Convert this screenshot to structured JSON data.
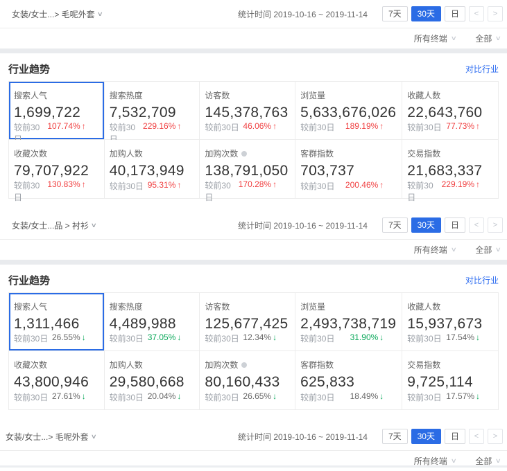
{
  "colors": {
    "accent_blue": "#2b6ce5",
    "link_blue": "#2d6cf0",
    "up_red": "#f04142",
    "down_green": "#0ba85a"
  },
  "modules": [
    {
      "breadcrumb": "女装/女士...> 毛呢外套",
      "stat_time": "统计时间 2019-10-16 ~ 2019-11-14",
      "range_buttons": [
        "7天",
        "30天",
        "日"
      ],
      "active_range": "30天",
      "pager": [
        "<",
        ">"
      ],
      "filters": [
        "所有终端",
        "全部"
      ],
      "panel": {
        "title": "行业趋势",
        "compare_link": "对比行业",
        "compare_label": "较前30日",
        "cards": [
          {
            "label": "搜索人气",
            "value": "1,699,722",
            "change": "107.74%",
            "dir": "up",
            "change_color": "red",
            "selected": true
          },
          {
            "label": "搜索热度",
            "value": "7,532,709",
            "change": "229.16%",
            "dir": "up",
            "change_color": "red"
          },
          {
            "label": "访客数",
            "value": "145,378,763",
            "change": "46.06%",
            "dir": "up",
            "change_color": "red"
          },
          {
            "label": "浏览量",
            "value": "5,633,676,026",
            "change": "189.19%",
            "dir": "up",
            "change_color": "red"
          },
          {
            "label": "收藏人数",
            "value": "22,643,760",
            "change": "77.73%",
            "dir": "up",
            "change_color": "red"
          },
          {
            "label": "收藏次数",
            "value": "79,707,922",
            "change": "130.83%",
            "dir": "up",
            "change_color": "red"
          },
          {
            "label": "加购人数",
            "value": "40,173,949",
            "change": "95.31%",
            "dir": "up",
            "change_color": "red"
          },
          {
            "label": "加购次数",
            "value": "138,791,050",
            "change": "170.28%",
            "dir": "up",
            "change_color": "red",
            "info": true
          },
          {
            "label": "客群指数",
            "value": "703,737",
            "change": "200.46%",
            "dir": "up",
            "change_color": "red"
          },
          {
            "label": "交易指数",
            "value": "21,683,337",
            "change": "229.19%",
            "dir": "up",
            "change_color": "red"
          }
        ]
      }
    },
    {
      "breadcrumb": "女装/女士...品 > 衬衫",
      "stat_time": "统计时间 2019-10-16 ~ 2019-11-14",
      "range_buttons": [
        "7天",
        "30天",
        "日"
      ],
      "active_range": "30天",
      "pager": [
        "<",
        ">"
      ],
      "filters": [
        "所有终端",
        "全部"
      ],
      "panel": {
        "title": "行业趋势",
        "compare_link": "对比行业",
        "compare_label": "较前30日",
        "cards": [
          {
            "label": "搜索人气",
            "value": "1,311,466",
            "change": "26.55%",
            "dir": "down",
            "change_color": "gray",
            "selected": true
          },
          {
            "label": "搜索热度",
            "value": "4,489,988",
            "change": "37.05%",
            "dir": "down",
            "change_color": "green"
          },
          {
            "label": "访客数",
            "value": "125,677,425",
            "change": "12.34%",
            "dir": "down",
            "change_color": "gray"
          },
          {
            "label": "浏览量",
            "value": "2,493,738,719",
            "change": "31.90%",
            "dir": "down",
            "change_color": "green"
          },
          {
            "label": "收藏人数",
            "value": "15,937,673",
            "change": "17.54%",
            "dir": "down",
            "change_color": "gray"
          },
          {
            "label": "收藏次数",
            "value": "43,800,946",
            "change": "27.61%",
            "dir": "down",
            "change_color": "gray"
          },
          {
            "label": "加购人数",
            "value": "29,580,668",
            "change": "20.04%",
            "dir": "down",
            "change_color": "gray"
          },
          {
            "label": "加购次数",
            "value": "80,160,433",
            "change": "26.65%",
            "dir": "down",
            "change_color": "gray",
            "info": true
          },
          {
            "label": "客群指数",
            "value": "625,833",
            "change": "18.49%",
            "dir": "down",
            "change_color": "gray"
          },
          {
            "label": "交易指数",
            "value": "9,725,114",
            "change": "17.57%",
            "dir": "down",
            "change_color": "gray"
          }
        ]
      }
    },
    {
      "breadcrumb": "女装/女士...> 毛呢外套",
      "stat_time": "统计时间 2019-10-16 ~ 2019-11-14",
      "range_buttons": [
        "7天",
        "30天",
        "日"
      ],
      "active_range": "30天",
      "pager": [
        "<",
        ">"
      ],
      "filters": [
        "所有终端",
        "全部"
      ]
    }
  ]
}
